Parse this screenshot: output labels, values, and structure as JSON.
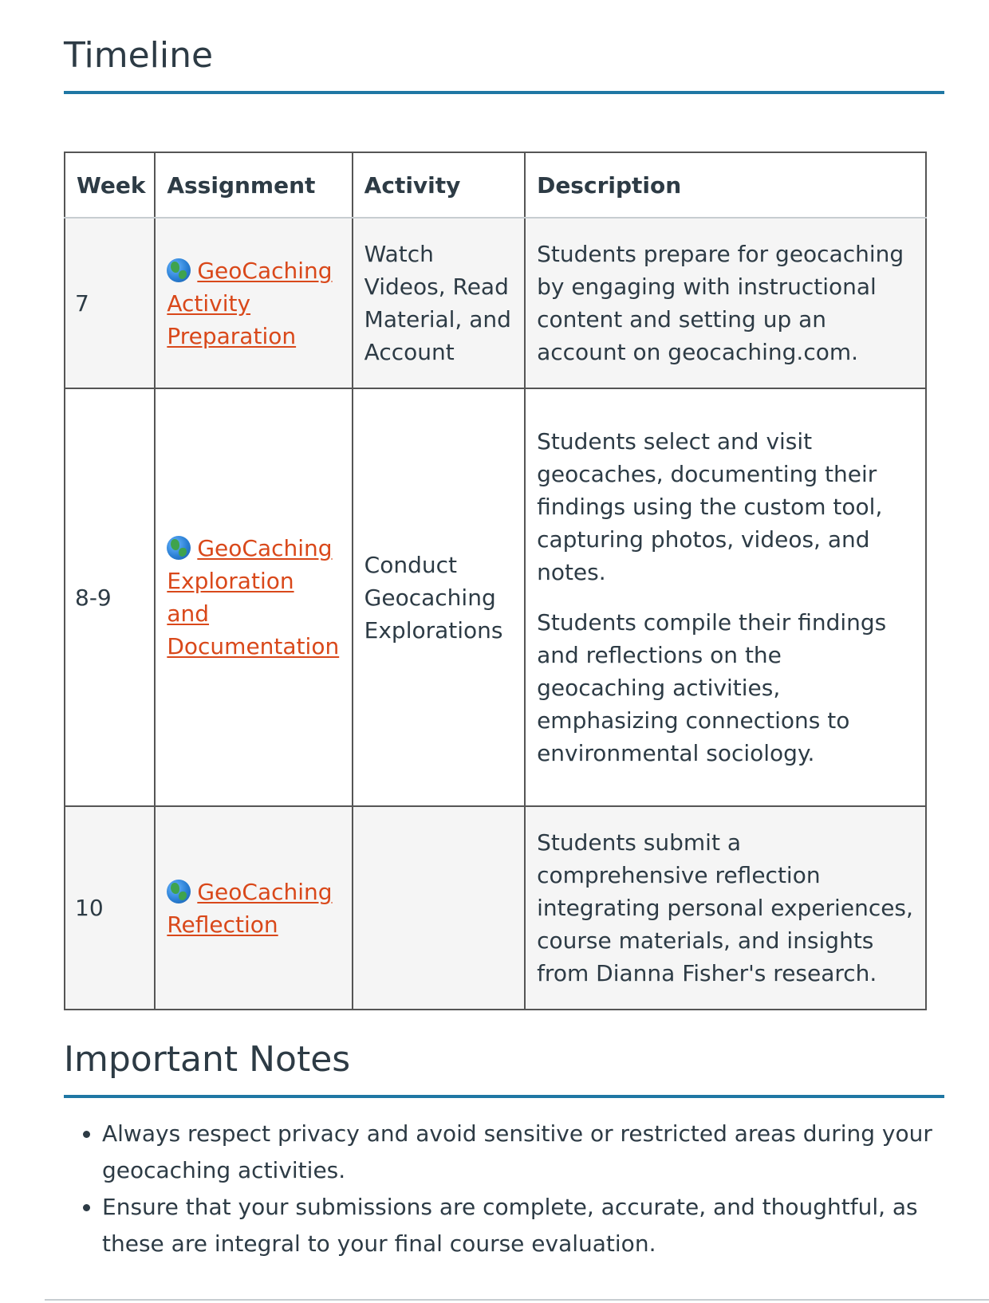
{
  "timeline": {
    "title": "Timeline",
    "headers": {
      "week": "Week",
      "assignment": "Assignment",
      "activity": "Activity",
      "description": "Description"
    },
    "rows": [
      {
        "week": "7",
        "assignment_icon": "globe-icon",
        "assignment": "GeoCaching Activity Preparation",
        "activity": "Watch Videos, Read Material, and Account",
        "description": [
          "Students prepare for geocaching by engaging with instructional content and setting up an account on geocaching.com."
        ]
      },
      {
        "week": "8-9",
        "assignment_icon": "globe-icon",
        "assignment": "GeoCaching Exploration and Documentation",
        "activity": "Conduct Geocaching Explorations",
        "description": [
          "Students select and visit geocaches, documenting their findings using the custom tool, capturing photos, videos, and notes.",
          "Students compile their findings and reflections on the geocaching activities, emphasizing connections to environmental sociology."
        ]
      },
      {
        "week": "10",
        "assignment_icon": "globe-icon",
        "assignment": "GeoCaching Reflection",
        "activity": "",
        "description": [
          "Students submit a comprehensive reflection integrating personal experiences, course materials, and insights from Dianna Fisher's research."
        ]
      }
    ]
  },
  "notes": {
    "title": "Important Notes",
    "items": [
      "Always respect privacy and avoid sensitive or restricted areas during your geocaching activities.",
      "Ensure that your submissions are complete, accurate, and thoughtful, as these are integral to your final course evaluation."
    ]
  },
  "colors": {
    "heading_rule": "#1f77a4",
    "link": "#d9481a",
    "text": "#2d3b45",
    "row_shade": "#f5f5f5"
  }
}
